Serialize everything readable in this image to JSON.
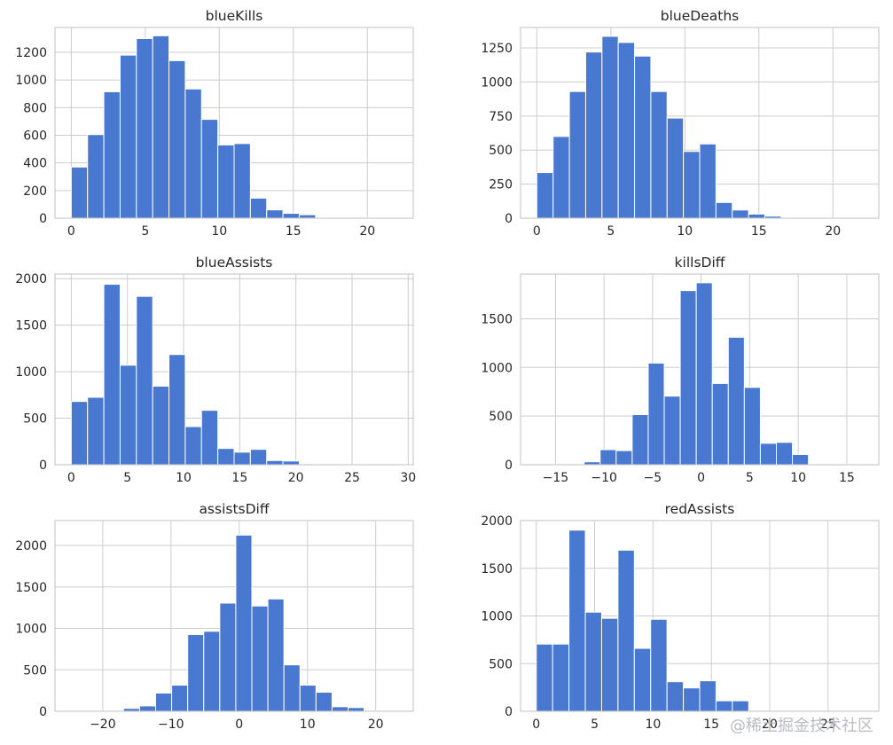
{
  "watermark": "@稀土掘金技术社区",
  "colors": {
    "bar": "#4878d0",
    "grid": "#cccccc",
    "text": "#262626"
  },
  "chart_data": [
    {
      "type": "bar",
      "title": "blueKills",
      "xlim": [
        -1.1,
        23.1
      ],
      "ylim": [
        0,
        1380
      ],
      "xticks": [
        0,
        5,
        10,
        15,
        20
      ],
      "yticks": [
        0,
        200,
        400,
        600,
        800,
        1000,
        1200
      ],
      "bin_start": 0,
      "bin_width": 1.1,
      "values": [
        370,
        605,
        915,
        1180,
        1300,
        1320,
        1140,
        935,
        715,
        530,
        540,
        145,
        60,
        35,
        25,
        5,
        5,
        2,
        2,
        2
      ]
    },
    {
      "type": "bar",
      "title": "blueDeaths",
      "xlim": [
        -1.1,
        23.1
      ],
      "ylim": [
        0,
        1400
      ],
      "xticks": [
        0,
        5,
        10,
        15,
        20
      ],
      "yticks": [
        0,
        250,
        500,
        750,
        1000,
        1250
      ],
      "bin_start": 0,
      "bin_width": 1.1,
      "values": [
        335,
        600,
        930,
        1220,
        1335,
        1290,
        1190,
        930,
        735,
        490,
        545,
        115,
        60,
        30,
        15,
        5,
        2,
        2,
        2,
        2
      ]
    },
    {
      "type": "bar",
      "title": "blueAssists",
      "xlim": [
        -1.45,
        30.45
      ],
      "ylim": [
        0,
        2050
      ],
      "xticks": [
        0,
        5,
        10,
        15,
        20,
        25,
        30
      ],
      "yticks": [
        0,
        500,
        1000,
        1500,
        2000
      ],
      "bin_start": 0,
      "bin_width": 1.45,
      "values": [
        680,
        725,
        1940,
        1070,
        1810,
        845,
        1185,
        410,
        585,
        175,
        135,
        165,
        45,
        40,
        10,
        5,
        2,
        2,
        2,
        2
      ]
    },
    {
      "type": "bar",
      "title": "killsDiff",
      "xlim": [
        -18.6,
        18.3
      ],
      "ylim": [
        0,
        1960
      ],
      "xticks": [
        -15,
        -10,
        -5,
        0,
        5,
        10,
        15
      ],
      "yticks": [
        0,
        500,
        1000,
        1500
      ],
      "bin_start": -17,
      "bin_width": 1.65,
      "values": [
        2,
        2,
        2,
        30,
        155,
        145,
        515,
        1045,
        705,
        1790,
        1870,
        835,
        1310,
        795,
        220,
        230,
        105,
        2,
        2,
        2
      ]
    },
    {
      "type": "bar",
      "title": "assistsDiff",
      "xlim": [
        -27,
        25.5
      ],
      "ylim": [
        0,
        2300
      ],
      "xticks": [
        -20,
        -10,
        0,
        10,
        20
      ],
      "yticks": [
        0,
        500,
        1000,
        1500,
        2000
      ],
      "bin_start": -24,
      "bin_width": 2.35,
      "values": [
        2,
        5,
        10,
        35,
        65,
        220,
        315,
        925,
        965,
        1305,
        2125,
        1270,
        1355,
        560,
        315,
        230,
        55,
        45,
        5,
        2
      ]
    },
    {
      "type": "bar",
      "title": "redAssists",
      "xlim": [
        -1.35,
        29.35
      ],
      "ylim": [
        0,
        2000
      ],
      "xticks": [
        0,
        5,
        10,
        15,
        20,
        25
      ],
      "yticks": [
        0,
        500,
        1000,
        1500,
        2000
      ],
      "bin_start": 0,
      "bin_width": 1.4,
      "values": [
        705,
        705,
        1900,
        1040,
        975,
        1690,
        660,
        965,
        310,
        245,
        320,
        110,
        110,
        2,
        2,
        2,
        2,
        2,
        2,
        2
      ]
    }
  ]
}
